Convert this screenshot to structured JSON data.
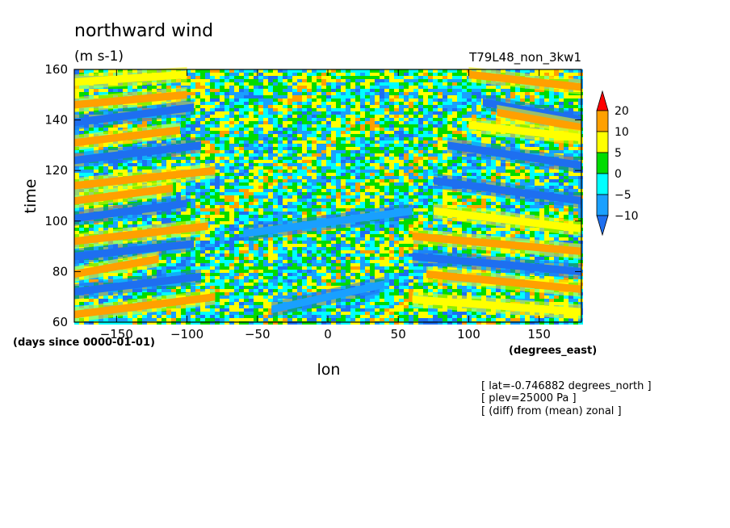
{
  "chart_data": {
    "type": "heatmap",
    "title": "northward wind",
    "units": "(m s-1)",
    "run_label": "T79L48_non_3kw1",
    "xlabel": "lon",
    "ylabel": "time",
    "x_units": "(degrees_east)",
    "y_units": "(days since 0000-01-01)",
    "xlim": [
      -180,
      180
    ],
    "ylim": [
      60,
      160
    ],
    "x_ticks": [
      -150,
      -100,
      -50,
      0,
      50,
      100,
      150
    ],
    "y_ticks": [
      60,
      80,
      100,
      120,
      140,
      160
    ],
    "colorbar": {
      "levels": [
        -10,
        -5,
        0,
        5,
        10,
        20
      ],
      "labels": [
        "-10",
        "-5",
        "0",
        "5",
        "10",
        "20"
      ],
      "colors": [
        "#1e6ff0",
        "#19a0ff",
        "#00ffff",
        "#00dc00",
        "#ffff00",
        "#ffa000",
        "#ff0000"
      ],
      "extend": "both"
    },
    "bands": [
      {
        "lon_start": 100,
        "lon_end": 180,
        "t_start": 158,
        "t_end": 153,
        "value": 12
      },
      {
        "lon_start": 110,
        "lon_end": 180,
        "t_start": 147,
        "t_end": 140,
        "value": -11
      },
      {
        "lon_start": 120,
        "lon_end": 180,
        "t_start": 143,
        "t_end": 137,
        "value": 14
      },
      {
        "lon_start": 85,
        "lon_end": 180,
        "t_start": 130,
        "t_end": 122,
        "value": -11
      },
      {
        "lon_start": 100,
        "lon_end": 180,
        "t_start": 138,
        "t_end": 133,
        "value": 9
      },
      {
        "lon_start": 75,
        "lon_end": 180,
        "t_start": 116,
        "t_end": 108,
        "value": -11
      },
      {
        "lon_start": 75,
        "lon_end": 180,
        "t_start": 104,
        "t_end": 97,
        "value": 9
      },
      {
        "lon_start": 60,
        "lon_end": 180,
        "t_start": 94,
        "t_end": 88,
        "value": 14
      },
      {
        "lon_start": 60,
        "lon_end": 180,
        "t_start": 86,
        "t_end": 80,
        "value": -11
      },
      {
        "lon_start": 70,
        "lon_end": 180,
        "t_start": 79,
        "t_end": 73,
        "value": 12
      },
      {
        "lon_start": 60,
        "lon_end": 180,
        "t_start": 69,
        "t_end": 64,
        "value": 8
      },
      {
        "lon_start": -180,
        "lon_end": -100,
        "t_start": 155,
        "t_end": 158,
        "value": 8
      },
      {
        "lon_start": -180,
        "lon_end": -100,
        "t_start": 146,
        "t_end": 150,
        "value": 16
      },
      {
        "lon_start": -180,
        "lon_end": -95,
        "t_start": 139,
        "t_end": 145,
        "value": -11
      },
      {
        "lon_start": -180,
        "lon_end": -105,
        "t_start": 131,
        "t_end": 136,
        "value": 12
      },
      {
        "lon_start": -180,
        "lon_end": -90,
        "t_start": 124,
        "t_end": 130,
        "value": -11
      },
      {
        "lon_start": -180,
        "lon_end": -80,
        "t_start": 114,
        "t_end": 120,
        "value": 10
      },
      {
        "lon_start": -180,
        "lon_end": -110,
        "t_start": 108,
        "t_end": 113,
        "value": 14
      },
      {
        "lon_start": -180,
        "lon_end": -100,
        "t_start": 101,
        "t_end": 107,
        "value": -11
      },
      {
        "lon_start": -180,
        "lon_end": -85,
        "t_start": 92,
        "t_end": 98,
        "value": 12
      },
      {
        "lon_start": -180,
        "lon_end": -95,
        "t_start": 86,
        "t_end": 91,
        "value": -11
      },
      {
        "lon_start": -180,
        "lon_end": -120,
        "t_start": 79,
        "t_end": 85,
        "value": 16
      },
      {
        "lon_start": -180,
        "lon_end": -90,
        "t_start": 72,
        "t_end": 78,
        "value": -11
      },
      {
        "lon_start": -180,
        "lon_end": -80,
        "t_start": 63,
        "t_end": 70,
        "value": 11
      },
      {
        "lon_start": -60,
        "lon_end": 60,
        "t_start": 95,
        "t_end": 104,
        "value": -8
      },
      {
        "lon_start": -40,
        "lon_end": 40,
        "t_start": 65,
        "t_end": 75,
        "value": -8
      }
    ]
  },
  "annotations": {
    "lat": "[ lat=-0.746882 degrees_north ]",
    "plev": "[ plev=25000 Pa ]",
    "diff": "[ (diff) from (mean) zonal ]"
  }
}
